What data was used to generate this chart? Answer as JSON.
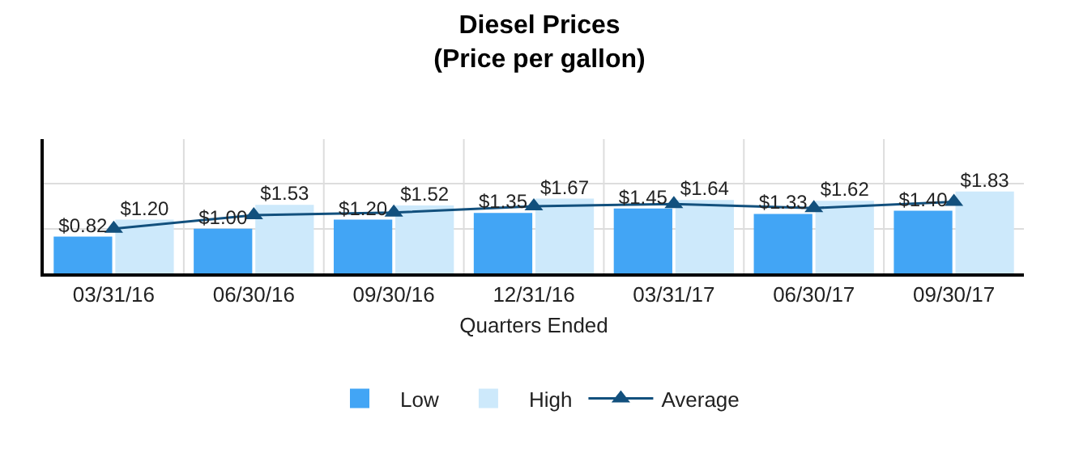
{
  "chart_data": {
    "type": "bar",
    "title": "Diesel Prices\n(Price per gallon)",
    "xlabel": "Quarters Ended",
    "categories": [
      "03/31/16",
      "06/30/16",
      "09/30/16",
      "12/31/16",
      "03/31/17",
      "06/30/17",
      "09/30/17"
    ],
    "series": [
      {
        "name": "Low",
        "color": "#42a5f5",
        "values": [
          0.82,
          1.0,
          1.2,
          1.35,
          1.45,
          1.33,
          1.4
        ],
        "value_labels": [
          "$0.82",
          "$1.00",
          "$1.20",
          "$1.35",
          "$1.45",
          "$1.33",
          "$1.40"
        ]
      },
      {
        "name": "High",
        "color": "#cde9fb",
        "values": [
          1.2,
          1.53,
          1.52,
          1.67,
          1.64,
          1.62,
          1.83
        ],
        "value_labels": [
          "$1.20",
          "$1.53",
          "$1.52",
          "$1.67",
          "$1.64",
          "$1.62",
          "$1.83"
        ]
      },
      {
        "name": "Average",
        "type": "line",
        "color": "#12507d",
        "values": [
          1.0,
          1.3,
          1.36,
          1.5,
          1.55,
          1.46,
          1.6
        ]
      }
    ],
    "ylim": [
      0,
      3
    ],
    "yticks": [
      {
        "value": 1,
        "label": null
      },
      {
        "value": 2,
        "label": null
      }
    ],
    "tick_labels": "x",
    "grid": true,
    "legend": "bottom",
    "marker": "triangle",
    "line_style": "solid"
  }
}
